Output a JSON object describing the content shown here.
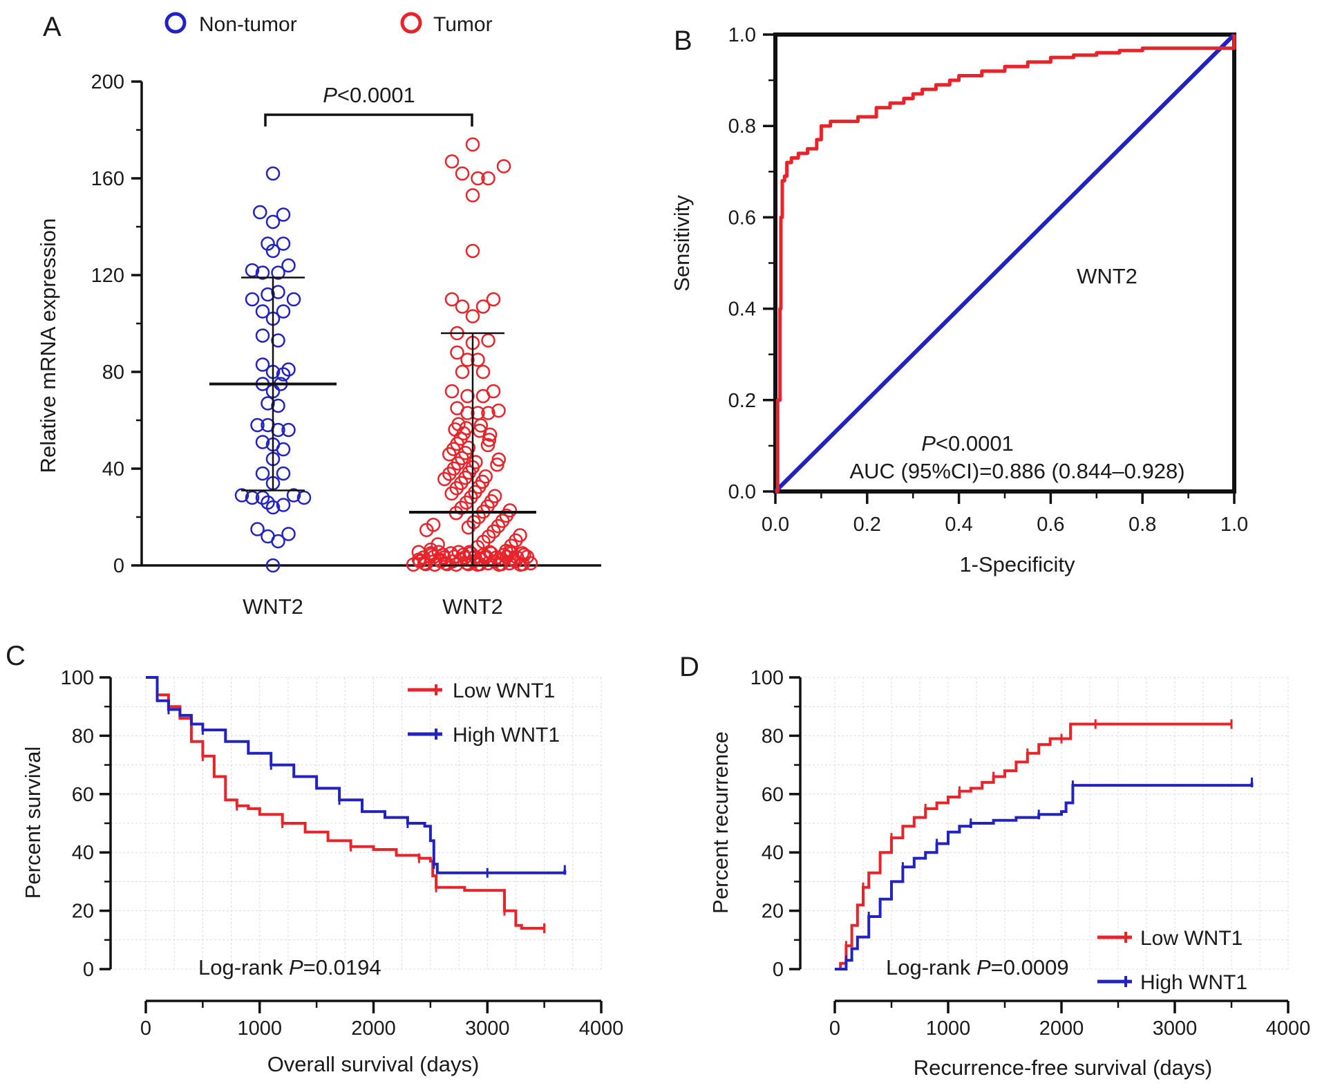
{
  "figure": {
    "panel_labels": [
      "A",
      "B",
      "C",
      "D"
    ]
  },
  "colors": {
    "red": "#e8232a",
    "blue": "#2222c0",
    "axis": "#111111",
    "mean_bar": "#111111"
  },
  "chart_data": [
    {
      "panel": "A",
      "type": "scatter",
      "ylabel": "Relative mRNA expression",
      "ylim": [
        0,
        200
      ],
      "yticks": [
        "0",
        "40",
        "80",
        "120",
        "160",
        "200"
      ],
      "categories": [
        "WNT2",
        "WNT2"
      ],
      "significance": {
        "p_italic": "P",
        "p_text": "<0.0001"
      },
      "legend": [
        {
          "label": "Non-tumor",
          "color": "#2222c0"
        },
        {
          "label": "Tumor",
          "color": "#e8232a"
        }
      ],
      "series": [
        {
          "name": "Non-tumor",
          "mean": 75,
          "sd_low": 31,
          "sd_high": 119,
          "points": [
            [
              0,
              162
            ],
            [
              -0.25,
              146
            ],
            [
              0.2,
              145
            ],
            [
              0,
              142
            ],
            [
              -0.1,
              133
            ],
            [
              0,
              130
            ],
            [
              0.2,
              133
            ],
            [
              -0.4,
              122
            ],
            [
              -0.2,
              121
            ],
            [
              0.1,
              121
            ],
            [
              0.3,
              124
            ],
            [
              -0.4,
              110
            ],
            [
              -0.1,
              112
            ],
            [
              0.1,
              113
            ],
            [
              0.4,
              110
            ],
            [
              -0.2,
              105
            ],
            [
              0,
              102
            ],
            [
              0.2,
              105
            ],
            [
              -0.2,
              95
            ],
            [
              0.1,
              93
            ],
            [
              -0.2,
              83
            ],
            [
              0,
              80
            ],
            [
              0.2,
              79
            ],
            [
              0.3,
              81
            ],
            [
              -0.2,
              75
            ],
            [
              0,
              72
            ],
            [
              0.15,
              75
            ],
            [
              -0.1,
              67
            ],
            [
              0.1,
              66
            ],
            [
              -0.3,
              58
            ],
            [
              -0.1,
              58
            ],
            [
              0.1,
              56
            ],
            [
              0.3,
              56
            ],
            [
              -0.2,
              51
            ],
            [
              0,
              50
            ],
            [
              0.2,
              48
            ],
            [
              0,
              44
            ],
            [
              -0.2,
              38
            ],
            [
              0.2,
              38
            ],
            [
              0,
              34
            ],
            [
              -0.6,
              29
            ],
            [
              -0.4,
              28
            ],
            [
              -0.2,
              28
            ],
            [
              0.4,
              29
            ],
            [
              0.6,
              28
            ],
            [
              -0.1,
              26
            ],
            [
              0,
              24
            ],
            [
              0.2,
              25
            ],
            [
              -0.3,
              15
            ],
            [
              -0.1,
              12
            ],
            [
              0.1,
              10
            ],
            [
              0.3,
              13
            ],
            [
              0,
              0
            ]
          ]
        },
        {
          "name": "Tumor",
          "mean": 22,
          "sd_low": 0,
          "sd_high": 96,
          "points": [
            [
              0,
              174
            ],
            [
              -0.4,
              167
            ],
            [
              -0.2,
              162
            ],
            [
              0.1,
              160
            ],
            [
              0.3,
              160
            ],
            [
              0.6,
              165
            ],
            [
              0,
              153
            ],
            [
              0,
              130
            ],
            [
              -0.4,
              110
            ],
            [
              -0.2,
              107
            ],
            [
              0.2,
              107
            ],
            [
              0.4,
              110
            ],
            [
              0,
              103
            ],
            [
              -0.3,
              96
            ],
            [
              0,
              92
            ],
            [
              0.3,
              93
            ],
            [
              -0.3,
              88
            ],
            [
              -0.1,
              85
            ],
            [
              0.1,
              85
            ],
            [
              -0.2,
              80
            ],
            [
              0.2,
              80
            ],
            [
              -0.4,
              72
            ],
            [
              -0.1,
              70
            ],
            [
              0.2,
              70
            ],
            [
              0.4,
              72
            ],
            [
              -0.3,
              65
            ],
            [
              -0.1,
              63
            ],
            [
              0.1,
              63
            ],
            [
              0.3,
              63
            ],
            [
              0.5,
              64
            ]
          ]
        }
      ]
    },
    {
      "panel": "B",
      "type": "line",
      "title": "WNT2",
      "xlabel": "1-Specificity",
      "ylabel": "Sensitivity",
      "xlim": [
        0,
        1
      ],
      "ylim": [
        0,
        1
      ],
      "xticks": [
        "0.0",
        "0.2",
        "0.4",
        "0.6",
        "0.8",
        "1.0"
      ],
      "yticks": [
        "0.0",
        "0.2",
        "0.4",
        "0.6",
        "0.8",
        "1.0"
      ],
      "annotation": {
        "p_italic": "P",
        "p_text": "<0.0001",
        "auc_text": "AUC (95%CI)=0.886 (0.844–0.928)"
      },
      "series": [
        {
          "name": "ROC",
          "color": "#e8232a",
          "x": [
            0,
            0.005,
            0.01,
            0.012,
            0.015,
            0.02,
            0.025,
            0.035,
            0.05,
            0.07,
            0.09,
            0.1,
            0.12,
            0.15,
            0.18,
            0.2,
            0.22,
            0.25,
            0.28,
            0.3,
            0.32,
            0.35,
            0.38,
            0.4,
            0.45,
            0.5,
            0.55,
            0.6,
            0.65,
            0.7,
            0.75,
            0.8,
            0.85,
            0.9,
            0.95,
            1.0
          ],
          "y": [
            0,
            0.2,
            0.4,
            0.6,
            0.68,
            0.69,
            0.72,
            0.73,
            0.74,
            0.75,
            0.77,
            0.8,
            0.81,
            0.81,
            0.82,
            0.82,
            0.84,
            0.85,
            0.86,
            0.87,
            0.88,
            0.89,
            0.9,
            0.91,
            0.92,
            0.93,
            0.94,
            0.95,
            0.955,
            0.96,
            0.965,
            0.97,
            0.97,
            0.97,
            0.97,
            1.0
          ]
        },
        {
          "name": "Reference",
          "color": "#2222c0",
          "x": [
            0,
            1
          ],
          "y": [
            0,
            1
          ]
        }
      ]
    },
    {
      "panel": "C",
      "type": "line",
      "xlabel": "Overall survival (days)",
      "ylabel": "Percent survival",
      "xlim": [
        0,
        4000
      ],
      "ylim": [
        0,
        100
      ],
      "xticks": [
        "0",
        "1000",
        "2000",
        "3000",
        "4000"
      ],
      "yticks": [
        "0",
        "20",
        "40",
        "60",
        "80",
        "100"
      ],
      "annotation": {
        "prefix": "Log-rank ",
        "p_italic": "P",
        "p_text": "=0.0194"
      },
      "series": [
        {
          "name": "Low WNT1",
          "color": "#e8232a",
          "x": [
            0,
            100,
            200,
            300,
            400,
            500,
            600,
            700,
            800,
            900,
            1000,
            1200,
            1400,
            1600,
            1800,
            2000,
            2200,
            2400,
            2500,
            2520,
            2550,
            2800,
            3100,
            3150,
            3250,
            3300,
            3500
          ],
          "y": [
            100,
            94,
            90,
            86,
            78,
            73,
            66,
            58,
            56,
            55,
            53,
            50,
            47,
            44,
            42,
            41,
            39,
            38,
            37,
            32,
            28,
            27,
            27,
            20,
            15,
            14,
            14
          ]
        },
        {
          "name": "High WNT1",
          "color": "#2222c0",
          "x": [
            0,
            100,
            200,
            300,
            400,
            500,
            700,
            900,
            1100,
            1300,
            1500,
            1700,
            1900,
            2100,
            2300,
            2450,
            2500,
            2530,
            2560,
            2700,
            3000,
            3400,
            3680
          ],
          "y": [
            100,
            92,
            89,
            87,
            84,
            82,
            78,
            74,
            70,
            66,
            62,
            58,
            54,
            52,
            50,
            49,
            44,
            36,
            33,
            33,
            33,
            33,
            34
          ]
        }
      ],
      "legend": [
        {
          "label": "Low WNT1",
          "color": "#e8232a"
        },
        {
          "label": "High WNT1",
          "color": "#2222c0"
        }
      ]
    },
    {
      "panel": "D",
      "type": "line",
      "xlabel": "Recurrence-free survival (days)",
      "ylabel": "Percent recurrence",
      "xlim": [
        0,
        4000
      ],
      "ylim": [
        0,
        100
      ],
      "xticks": [
        "0",
        "1000",
        "2000",
        "3000",
        "4000"
      ],
      "yticks": [
        "0",
        "20",
        "40",
        "60",
        "80",
        "100"
      ],
      "annotation": {
        "prefix": "Log-rank ",
        "p_italic": "P",
        "p_text": "=0.0009"
      },
      "series": [
        {
          "name": "Low WNT1",
          "color": "#e8232a",
          "x": [
            0,
            50,
            100,
            150,
            200,
            250,
            300,
            400,
            500,
            600,
            700,
            800,
            900,
            1000,
            1100,
            1200,
            1300,
            1400,
            1500,
            1600,
            1700,
            1800,
            1900,
            2000,
            2060,
            2080,
            2300,
            3500
          ],
          "y": [
            0,
            2,
            8,
            15,
            22,
            28,
            33,
            40,
            45,
            49,
            52,
            55,
            57,
            59,
            61,
            62,
            64,
            66,
            68,
            71,
            74,
            77,
            79,
            79,
            79,
            84,
            84,
            84
          ]
        },
        {
          "name": "High WNT1",
          "color": "#2222c0",
          "x": [
            0,
            80,
            100,
            150,
            200,
            300,
            400,
            500,
            600,
            700,
            800,
            900,
            1000,
            1100,
            1200,
            1400,
            1600,
            1800,
            2000,
            2040,
            2100,
            2200,
            2500,
            3680
          ],
          "y": [
            0,
            0,
            3,
            7,
            11,
            18,
            24,
            30,
            35,
            38,
            40,
            43,
            47,
            49,
            50,
            51,
            52,
            53,
            54,
            57,
            63,
            63,
            63,
            64
          ]
        }
      ],
      "legend": [
        {
          "label": "Low WNT1",
          "color": "#e8232a"
        },
        {
          "label": "High WNT1",
          "color": "#2222c0"
        }
      ]
    }
  ]
}
